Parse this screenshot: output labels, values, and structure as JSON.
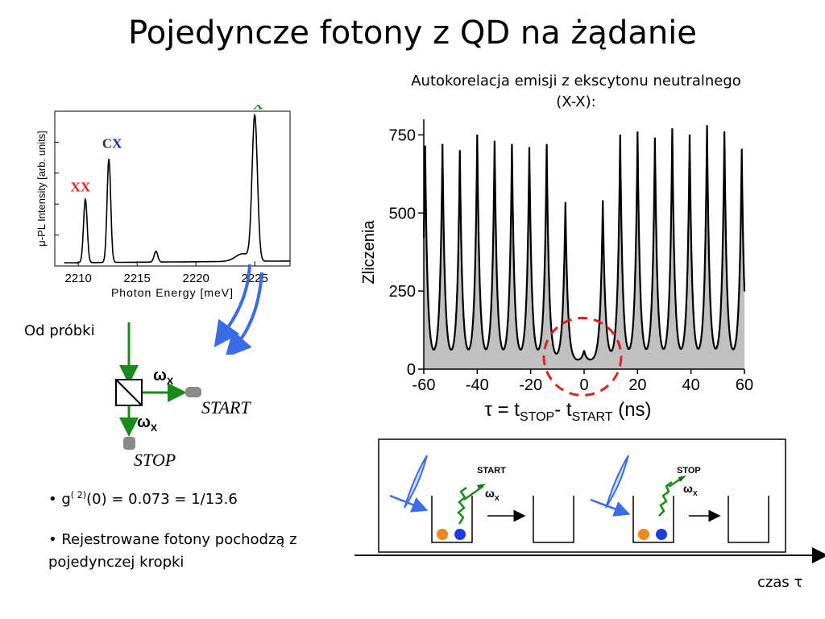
{
  "slide": {
    "title": "Pojedyncze fotony z QD na żądanie",
    "subtitle": "Autokorelacja emisji z ekscytonu neutralnego (X-X):",
    "left_label": "Od próbki",
    "omega": "ω",
    "omega_sub": "X",
    "start_label": "START",
    "stop_label": "STOP",
    "bullet_1_pre": "• g",
    "bullet_1_sup": "( 2)",
    "bullet_1_post": "(0) = 0.073 = 1/13.6",
    "bullet_2": "• Rejestrowane fotony pochodzą z pojedynczej kropki",
    "time_axis_label": "czas τ",
    "timeline_start": "START",
    "timeline_stop": "STOP",
    "colors": {
      "title": "#000000",
      "arrow_blue": "#3a6be8",
      "green": "#1a8a1a",
      "dark_green": "#0f6e0f",
      "red_dash": "#e02020",
      "fill_gray": "#c0c0c0",
      "orange_dot": "#f08a1e",
      "blue_dot": "#1e3ce0"
    }
  },
  "chart_data": [
    {
      "type": "line",
      "title": "",
      "xlabel": "Photon Energy [meV]",
      "ylabel": "μ-PL Intensity [arb. units]",
      "xlim": [
        2208,
        2228
      ],
      "ylim": [
        0,
        1
      ],
      "xticks": [
        2210,
        2215,
        2220,
        2225
      ],
      "yticks_labels": false,
      "peaks": [
        {
          "name": "XX",
          "x": 2210.6,
          "height": 0.41,
          "color": "#e02020"
        },
        {
          "name": "CX",
          "x": 2212.6,
          "height": 0.67,
          "color": "#1a2a9a"
        },
        {
          "name": "",
          "x": 2216.6,
          "height": 0.07,
          "color": ""
        },
        {
          "name": "X",
          "x": 2225.0,
          "height": 0.93,
          "color": "#1a8a1a"
        }
      ],
      "baseline": 0.02
    },
    {
      "type": "area",
      "title": "",
      "xlabel": "τ = t",
      "xlabel_sub1": "STOP",
      "xlabel_mid": "- t",
      "xlabel_sub2": "START",
      "xlabel_unit": " (ns)",
      "ylabel": "Zliczenia",
      "xlim": [
        -60,
        60
      ],
      "ylim": [
        0,
        800
      ],
      "xticks": [
        -60,
        -40,
        -20,
        0,
        20,
        40,
        60
      ],
      "yticks": [
        0,
        250,
        500,
        750
      ],
      "peak_x": [
        -59.5,
        -53,
        -46.5,
        -40,
        -33.5,
        -27,
        -20.5,
        -14,
        -7,
        0,
        7,
        13.5,
        20,
        26.5,
        33,
        39.5,
        46,
        52.5,
        59
      ],
      "peak_y": [
        715,
        720,
        700,
        750,
        730,
        720,
        710,
        720,
        535,
        60,
        540,
        750,
        760,
        740,
        770,
        750,
        780,
        760,
        705
      ],
      "baseline": 25
    }
  ]
}
